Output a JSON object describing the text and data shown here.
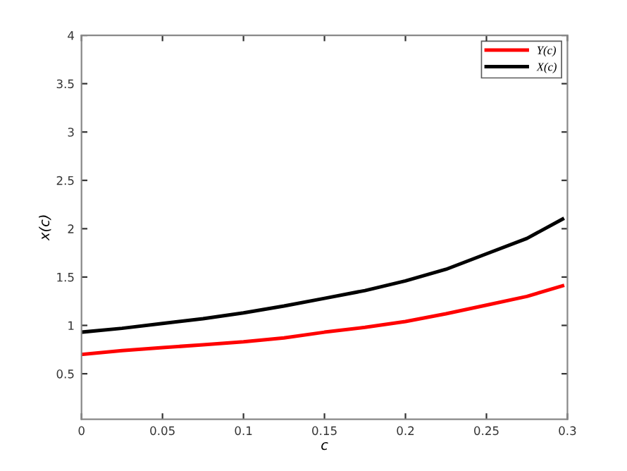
{
  "chart_data": {
    "type": "line",
    "xlabel": "c",
    "ylabel": "x(c)",
    "xlim": [
      0,
      0.3
    ],
    "ylim": [
      0.03,
      4
    ],
    "xticks": [
      0,
      0.05,
      0.1,
      0.15,
      0.2,
      0.25,
      0.3
    ],
    "yticks": [
      0.5,
      1,
      1.5,
      2,
      2.5,
      3,
      3.5,
      4
    ],
    "grid": false,
    "legend": "top right",
    "line_style": "solid",
    "series": [
      {
        "name": "Y(c)",
        "color": "#ff0000",
        "x": [
          0,
          0.025,
          0.05,
          0.075,
          0.1,
          0.125,
          0.15,
          0.175,
          0.2,
          0.225,
          0.25,
          0.275,
          0.297
        ],
        "values": [
          0.7,
          0.74,
          0.77,
          0.8,
          0.83,
          0.87,
          0.93,
          0.98,
          1.04,
          1.12,
          1.21,
          1.3,
          1.41
        ]
      },
      {
        "name": "X(c)",
        "color": "#000000",
        "x": [
          0,
          0.025,
          0.05,
          0.075,
          0.1,
          0.125,
          0.15,
          0.175,
          0.2,
          0.225,
          0.25,
          0.275,
          0.297
        ],
        "values": [
          0.93,
          0.97,
          1.02,
          1.07,
          1.13,
          1.2,
          1.28,
          1.36,
          1.46,
          1.58,
          1.74,
          1.9,
          2.1
        ]
      }
    ]
  }
}
